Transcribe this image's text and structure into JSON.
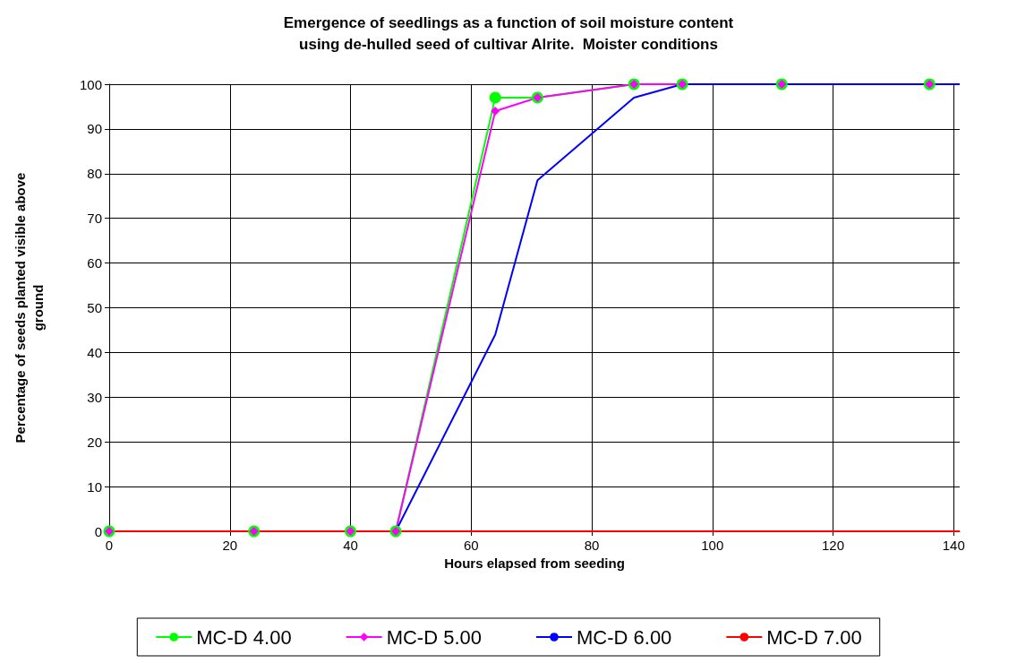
{
  "chart_data": {
    "type": "line",
    "title": "Emergence of seedlings as a function of soil moisture content\nusing de-hulled seed of cultivar Alrite.  Moister conditions",
    "xlabel": "Hours elapsed from seeding",
    "ylabel": "Percentage of seeds planted visible above\nground",
    "x": [
      0,
      24,
      40,
      47.5,
      64,
      71,
      87,
      95,
      111.5,
      136
    ],
    "series": [
      {
        "name": "MC-D 4.00",
        "color": "#00ff00",
        "marker": "circle",
        "values": [
          0,
          0,
          0,
          0,
          97,
          97,
          100,
          100,
          100,
          100
        ]
      },
      {
        "name": "MC-D 5.00",
        "color": "#ff00ff",
        "marker": "diamond",
        "values": [
          0,
          0,
          0,
          0,
          94,
          97,
          100,
          100,
          100,
          100
        ]
      },
      {
        "name": "MC-D 6.00",
        "color": "#0000ff",
        "marker": "none",
        "x": [
          40,
          47.5,
          64,
          71,
          87,
          95,
          111.5,
          136,
          141
        ],
        "values": [
          0,
          0,
          44,
          78.5,
          97,
          100,
          100,
          100,
          100
        ]
      },
      {
        "name": "MC-D 7.00",
        "color": "#ff0000",
        "marker": "none",
        "x": [
          0,
          24,
          40,
          47.5,
          64,
          71,
          87,
          95,
          111.5,
          136,
          141
        ],
        "values": [
          0,
          0,
          0,
          0,
          0,
          0,
          0,
          0,
          0,
          0,
          0
        ]
      }
    ],
    "xlim": [
      0,
      141
    ],
    "xticks": [
      0,
      20,
      40,
      60,
      80,
      100,
      120,
      140
    ],
    "ylim": [
      0,
      100
    ],
    "yticks": [
      0,
      10,
      20,
      30,
      40,
      50,
      60,
      70,
      80,
      90,
      100
    ],
    "grid": true,
    "legend": "bottom",
    "line_style": "solid"
  }
}
